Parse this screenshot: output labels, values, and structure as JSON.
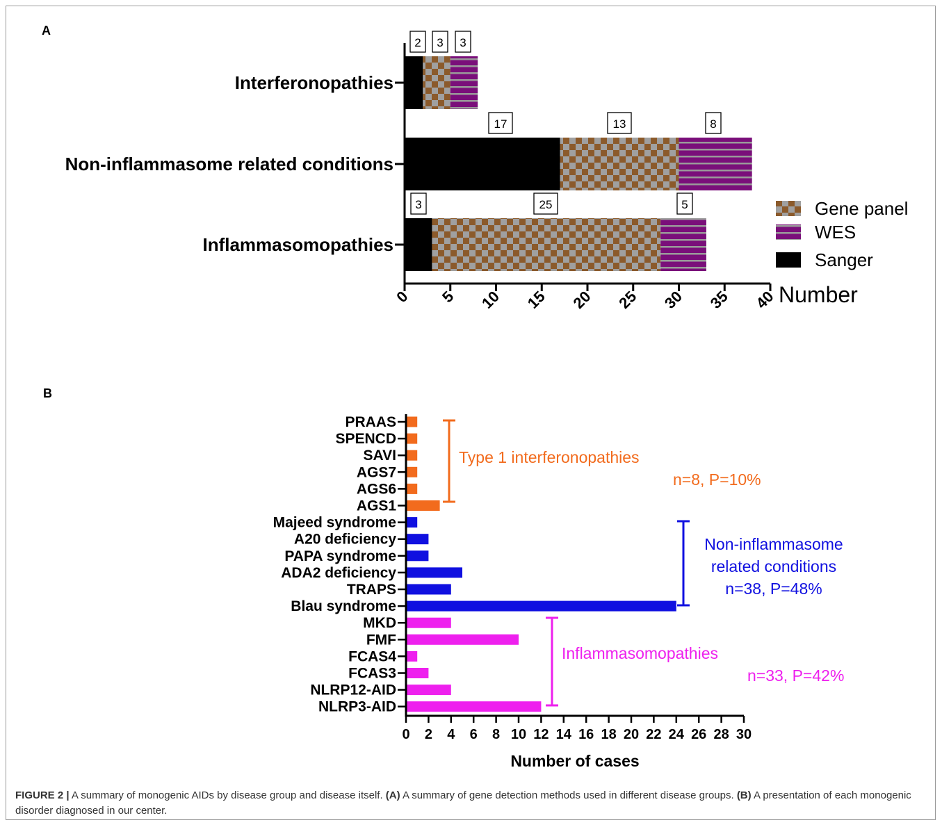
{
  "panel_a_letter": "A",
  "panel_b_letter": "B",
  "colors": {
    "sanger": "#000000",
    "checker_a": "#8B5A2B",
    "checker_b": "#A0A0A0",
    "wes": "#7A0F7A",
    "wes_stripe": "#9A9A9A",
    "type1": "#F26B1D",
    "noninfl": "#1010E0",
    "inflam": "#EE20EE"
  },
  "chart_data": [
    {
      "type": "bar",
      "orientation": "horizontal",
      "stacked": true,
      "categories": [
        "Interferonopathies",
        "Non-inflammasome related conditions",
        "Inflammasomopathies"
      ],
      "series": [
        {
          "name": "Sanger",
          "values": [
            2,
            17,
            3
          ]
        },
        {
          "name": "Gene panel",
          "values": [
            3,
            13,
            25
          ]
        },
        {
          "name": "WES",
          "values": [
            3,
            8,
            5
          ]
        }
      ],
      "xlabel": "Number",
      "xlim": [
        0,
        40
      ],
      "xticks": [
        "0",
        "5",
        "10",
        "15",
        "20",
        "25",
        "30",
        "35",
        "40"
      ],
      "legend": [
        "Gene panel",
        "WES",
        "Sanger"
      ],
      "legend_position": "right"
    },
    {
      "type": "bar",
      "orientation": "horizontal",
      "categories": [
        "PRAAS",
        "SPENCD",
        "SAVI",
        "AGS7",
        "AGS6",
        "AGS1",
        "Majeed syndrome",
        "A20 deficiency",
        "PAPA syndrome",
        "ADA2 deficiency",
        "TRAPS",
        "Blau syndrome",
        "MKD",
        "FMF",
        "FCAS4",
        "FCAS3",
        "NLRP12-AID",
        "NLRP3-AID"
      ],
      "values": [
        1,
        1,
        1,
        1,
        1,
        3,
        1,
        2,
        2,
        5,
        4,
        24,
        4,
        10,
        1,
        2,
        4,
        12
      ],
      "groups": [
        "type1",
        "type1",
        "type1",
        "type1",
        "type1",
        "type1",
        "noninfl",
        "noninfl",
        "noninfl",
        "noninfl",
        "noninfl",
        "noninfl",
        "inflam",
        "inflam",
        "inflam",
        "inflam",
        "inflam",
        "inflam"
      ],
      "xlabel": "Number of cases",
      "xlim": [
        0,
        30
      ],
      "xticks": [
        "0",
        "2",
        "4",
        "6",
        "8",
        "10",
        "12",
        "14",
        "16",
        "18",
        "20",
        "22",
        "24",
        "26",
        "28",
        "30"
      ],
      "annotations": {
        "type1_name": "Type 1 interferonopathies",
        "type1_stat": "n=8, P=10%",
        "noninfl_line1": "Non-inflammasome",
        "noninfl_line2": "related conditions",
        "noninfl_stat": "n=38, P=48%",
        "inflam_name": "Inflammasomopathies",
        "inflam_stat": "n=33, P=42%"
      }
    }
  ],
  "caption": {
    "fig": "FIGURE 2 |",
    "text1": " A summary of monogenic AIDs by disease group and disease itself. ",
    "a": "(A)",
    "text2": " A summary of gene detection methods used in different disease groups. ",
    "b": "(B)",
    "text3": " A presentation of each monogenic disorder diagnosed in our center."
  }
}
